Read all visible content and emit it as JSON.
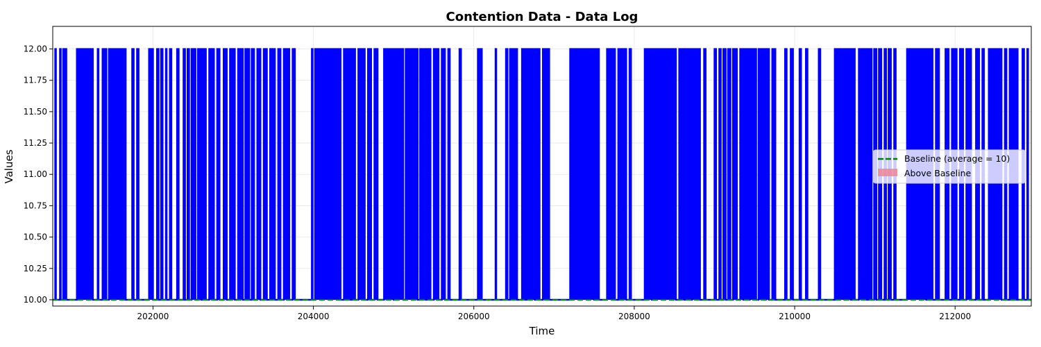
{
  "chart_data": {
    "type": "line",
    "title": "Contention Data - Data Log",
    "xlabel": "Time",
    "ylabel": "Values",
    "xlim": [
      200750,
      212950
    ],
    "ylim": [
      9.95,
      12.18
    ],
    "x_ticks": [
      202000,
      204000,
      206000,
      208000,
      210000,
      212000
    ],
    "x_tick_labels": [
      "202000",
      "204000",
      "206000",
      "208000",
      "210000",
      "212000"
    ],
    "y_ticks": [
      10.0,
      10.25,
      10.5,
      10.75,
      11.0,
      11.25,
      11.5,
      11.75,
      12.0
    ],
    "y_tick_labels": [
      "10.00",
      "10.25",
      "10.50",
      "10.75",
      "11.00",
      "11.25",
      "11.50",
      "11.75",
      "12.00"
    ],
    "grid": true,
    "legend_position": "center-right",
    "legend": [
      "Baseline (average = 10)",
      "Above Baseline"
    ],
    "low_value": 10,
    "high_value": 12,
    "series": [
      {
        "name": "Baseline (average = 10)",
        "style": "dashed",
        "color": "#008000",
        "value": 10
      },
      {
        "name": "Above Baseline",
        "color": "#f08090",
        "fill": true
      },
      {
        "color": "#0000ff",
        "spike_ranges": [
          [
            200780,
            200790
          ],
          [
            200840,
            200850
          ],
          [
            200880,
            200890
          ],
          [
            200910,
            200920
          ],
          [
            201050,
            201250
          ],
          [
            201310,
            201320
          ],
          [
            201370,
            201420
          ],
          [
            201450,
            201500
          ],
          [
            201520,
            201660
          ],
          [
            201740,
            201760
          ],
          [
            201800,
            201820
          ],
          [
            201950,
            202000
          ],
          [
            202050,
            202070
          ],
          [
            202100,
            202120
          ],
          [
            202160,
            202170
          ],
          [
            202210,
            202230
          ],
          [
            202300,
            202320
          ],
          [
            202380,
            202400
          ],
          [
            202430,
            202450
          ],
          [
            202480,
            202530
          ],
          [
            202560,
            202600
          ],
          [
            202620,
            202660
          ],
          [
            202700,
            202760
          ],
          [
            202800,
            202830
          ],
          [
            202880,
            202920
          ],
          [
            202960,
            203020
          ],
          [
            203060,
            203120
          ],
          [
            203150,
            203200
          ],
          [
            203230,
            203260
          ],
          [
            203300,
            203340
          ],
          [
            203380,
            203420
          ],
          [
            203460,
            203520
          ],
          [
            203560,
            203590
          ],
          [
            203630,
            203700
          ],
          [
            203740,
            203770
          ],
          [
            203980,
            203990
          ],
          [
            204020,
            204100
          ],
          [
            204120,
            204340
          ],
          [
            204380,
            204460
          ],
          [
            204480,
            204520
          ],
          [
            204560,
            204640
          ],
          [
            204680,
            204720
          ],
          [
            204760,
            204800
          ],
          [
            204880,
            205000
          ],
          [
            205020,
            205120
          ],
          [
            205150,
            205230
          ],
          [
            205250,
            205300
          ],
          [
            205330,
            205400
          ],
          [
            205420,
            205460
          ],
          [
            205500,
            205560
          ],
          [
            205600,
            205640
          ],
          [
            205680,
            205700
          ],
          [
            205820,
            205840
          ],
          [
            206050,
            206100
          ],
          [
            206270,
            206280
          ],
          [
            206400,
            206420
          ],
          [
            206450,
            206540
          ],
          [
            206600,
            206640
          ],
          [
            206660,
            206700
          ],
          [
            206720,
            206760
          ],
          [
            206780,
            206820
          ],
          [
            206860,
            206940
          ],
          [
            207200,
            207320
          ],
          [
            207340,
            207500
          ],
          [
            207520,
            207560
          ],
          [
            207660,
            207760
          ],
          [
            207800,
            207900
          ],
          [
            207940,
            207960
          ],
          [
            208130,
            208220
          ],
          [
            208240,
            208260
          ],
          [
            208280,
            208460
          ],
          [
            208480,
            208520
          ],
          [
            208560,
            208620
          ],
          [
            208640,
            208700
          ],
          [
            208720,
            208820
          ],
          [
            208870,
            208890
          ],
          [
            209000,
            209020
          ],
          [
            209060,
            209080
          ],
          [
            209110,
            209140
          ],
          [
            209170,
            209200
          ],
          [
            209230,
            209280
          ],
          [
            209320,
            209360
          ],
          [
            209380,
            209420
          ],
          [
            209440,
            209520
          ],
          [
            209550,
            209620
          ],
          [
            209640,
            209680
          ],
          [
            209720,
            209760
          ],
          [
            209880,
            209900
          ],
          [
            209950,
            209980
          ],
          [
            210060,
            210080
          ],
          [
            210140,
            210160
          ],
          [
            210300,
            210320
          ],
          [
            210500,
            210620
          ],
          [
            210640,
            210700
          ],
          [
            210720,
            210750
          ],
          [
            210800,
            210900
          ],
          [
            210920,
            210960
          ],
          [
            210990,
            211020
          ],
          [
            211050,
            211080
          ],
          [
            211120,
            211140
          ],
          [
            211170,
            211200
          ],
          [
            211240,
            211260
          ],
          [
            211400,
            211560
          ],
          [
            211580,
            211640
          ],
          [
            211660,
            211720
          ],
          [
            211760,
            211800
          ],
          [
            211880,
            211920
          ],
          [
            211960,
            212020
          ],
          [
            212060,
            212100
          ],
          [
            212140,
            212200
          ],
          [
            212260,
            212300
          ],
          [
            212340,
            212360
          ],
          [
            212420,
            212500
          ],
          [
            212520,
            212580
          ],
          [
            212620,
            212640
          ],
          [
            212680,
            212700
          ],
          [
            212720,
            212740
          ],
          [
            212760,
            212780
          ],
          [
            212840,
            212860
          ],
          [
            212900,
            212910
          ]
        ]
      }
    ]
  }
}
